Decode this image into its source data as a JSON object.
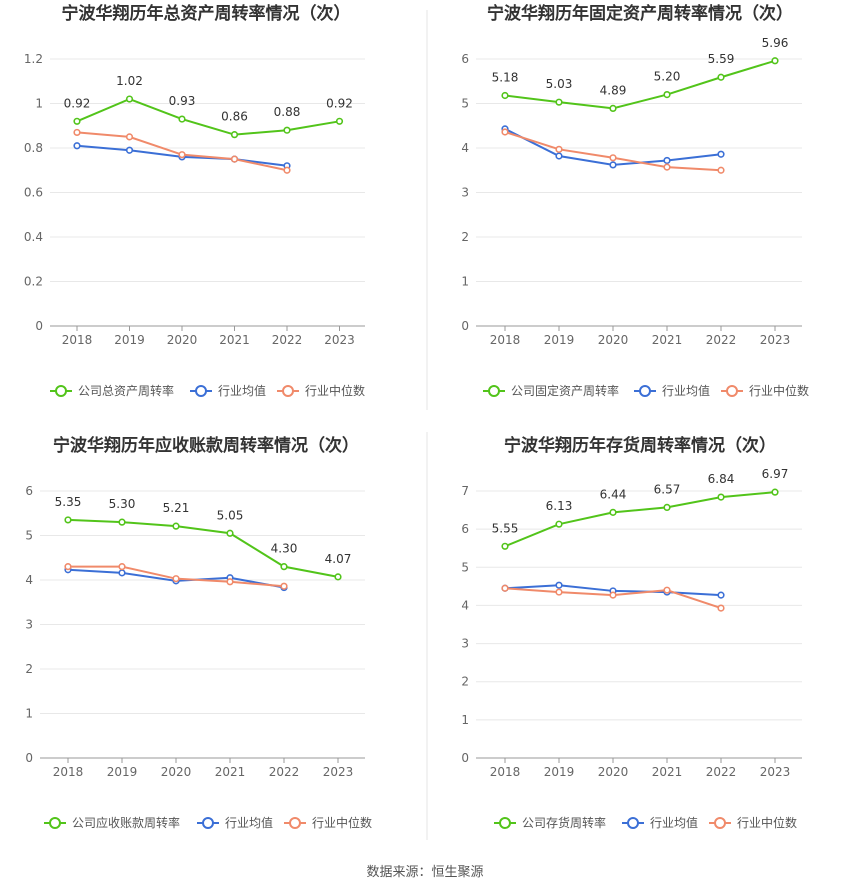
{
  "source": "数据来源：恒生聚源",
  "colors": {
    "company": "#52c41a",
    "avg": "#3b6fd6",
    "median": "#f08a6a"
  },
  "chart_data": [
    {
      "type": "line",
      "title": "宁波华翔历年总资产周转率情况（次）",
      "categories": [
        "2018",
        "2019",
        "2020",
        "2021",
        "2022",
        "2023"
      ],
      "ylim": [
        0,
        1.2
      ],
      "yticks": [
        "0",
        "0.2",
        "0.4",
        "0.6",
        "0.8",
        "1",
        "1.2"
      ],
      "grid": true,
      "legend": "bottom",
      "series": [
        {
          "name": "公司总资产周转率",
          "role": "company",
          "values": [
            0.92,
            1.02,
            0.93,
            0.86,
            0.88,
            0.92
          ],
          "labels": [
            "0.92",
            "1.02",
            "0.93",
            "0.86",
            "0.88",
            "0.92"
          ]
        },
        {
          "name": "行业均值",
          "role": "avg",
          "values": [
            0.81,
            0.79,
            0.76,
            0.75,
            0.72,
            null
          ]
        },
        {
          "name": "行业中位数",
          "role": "median",
          "values": [
            0.87,
            0.85,
            0.77,
            0.75,
            0.7,
            null
          ]
        }
      ]
    },
    {
      "type": "line",
      "title": "宁波华翔历年固定资产周转率情况（次）",
      "categories": [
        "2018",
        "2019",
        "2020",
        "2021",
        "2022",
        "2023"
      ],
      "ylim": [
        0,
        6
      ],
      "yticks": [
        "0",
        "1",
        "2",
        "3",
        "4",
        "5",
        "6"
      ],
      "grid": true,
      "legend": "bottom",
      "series": [
        {
          "name": "公司固定资产周转率",
          "role": "company",
          "values": [
            5.18,
            5.03,
            4.89,
            5.2,
            5.59,
            5.96
          ],
          "labels": [
            "5.18",
            "5.03",
            "4.89",
            "5.20",
            "5.59",
            "5.96"
          ]
        },
        {
          "name": "行业均值",
          "role": "avg",
          "values": [
            4.43,
            3.82,
            3.62,
            3.72,
            3.86,
            null
          ]
        },
        {
          "name": "行业中位数",
          "role": "median",
          "values": [
            4.36,
            3.97,
            3.78,
            3.57,
            3.5,
            null
          ]
        }
      ]
    },
    {
      "type": "line",
      "title": "宁波华翔历年应收账款周转率情况（次）",
      "categories": [
        "2018",
        "2019",
        "2020",
        "2021",
        "2022",
        "2023"
      ],
      "ylim": [
        0,
        6
      ],
      "yticks": [
        "0",
        "1",
        "2",
        "3",
        "4",
        "5",
        "6"
      ],
      "grid": true,
      "legend": "bottom",
      "series": [
        {
          "name": "公司应收账款周转率",
          "role": "company",
          "values": [
            5.35,
            5.3,
            5.21,
            5.05,
            4.3,
            4.07
          ],
          "labels": [
            "5.35",
            "5.30",
            "5.21",
            "5.05",
            "4.30",
            "4.07"
          ]
        },
        {
          "name": "行业均值",
          "role": "avg",
          "values": [
            4.23,
            4.16,
            3.98,
            4.05,
            3.83,
            null
          ]
        },
        {
          "name": "行业中位数",
          "role": "median",
          "values": [
            4.3,
            4.3,
            4.03,
            3.96,
            3.86,
            null
          ]
        }
      ]
    },
    {
      "type": "line",
      "title": "宁波华翔历年存货周转率情况（次）",
      "categories": [
        "2018",
        "2019",
        "2020",
        "2021",
        "2022",
        "2023"
      ],
      "ylim": [
        0,
        7
      ],
      "yticks": [
        "0",
        "1",
        "2",
        "3",
        "4",
        "5",
        "6",
        "7"
      ],
      "grid": true,
      "legend": "bottom",
      "series": [
        {
          "name": "公司存货周转率",
          "role": "company",
          "values": [
            5.55,
            6.13,
            6.44,
            6.57,
            6.84,
            6.97
          ],
          "labels": [
            "5.55",
            "6.13",
            "6.44",
            "6.57",
            "6.84",
            "6.97"
          ]
        },
        {
          "name": "行业均值",
          "role": "avg",
          "values": [
            4.45,
            4.53,
            4.38,
            4.35,
            4.27,
            null
          ]
        },
        {
          "name": "行业中位数",
          "role": "median",
          "values": [
            4.45,
            4.35,
            4.27,
            4.4,
            3.93,
            null
          ]
        }
      ]
    }
  ]
}
